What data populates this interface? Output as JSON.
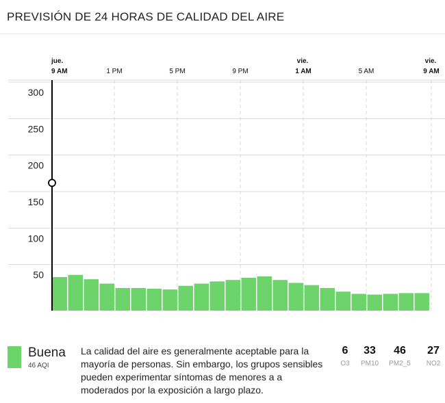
{
  "title": "PREVISIÓN DE 24 HORAS DE CALIDAD DEL AIRE",
  "colors": {
    "good": "#6dd36b",
    "grid": "#d8d8d8",
    "axis": "#000000"
  },
  "chart_data": {
    "type": "bar",
    "title": "PREVISIÓN DE 24 HORAS DE CALIDAD DEL AIRE",
    "ylim": [
      0,
      300
    ],
    "yticks": [
      50,
      100,
      150,
      200,
      250,
      300
    ],
    "grid": true,
    "xticks": [
      {
        "day": "jue.",
        "time": "9 AM",
        "bold": true,
        "index": 0
      },
      {
        "day": "",
        "time": "1 PM",
        "bold": false,
        "index": 4
      },
      {
        "day": "",
        "time": "5 PM",
        "bold": false,
        "index": 8
      },
      {
        "day": "",
        "time": "9 PM",
        "bold": false,
        "index": 12
      },
      {
        "day": "vie.",
        "time": "1 AM",
        "bold": true,
        "index": 16
      },
      {
        "day": "",
        "time": "5 AM",
        "bold": false,
        "index": 20
      },
      {
        "day": "vie.",
        "time": "9 AM",
        "bold": true,
        "index": 24
      }
    ],
    "values": [
      46,
      49,
      43,
      37,
      31,
      31,
      30,
      29,
      34,
      37,
      40,
      42,
      45,
      47,
      42,
      38,
      35,
      31,
      26,
      23,
      22,
      23,
      24,
      24
    ],
    "marker_value": 175
  },
  "aqi": {
    "category": "Buena",
    "value_label": "46 AQI",
    "description": "La calidad del aire es generalmente aceptable para la mayoría de personas. Sin embargo, los grupos sensibles pueden experimentar síntomas de menores a a moderados por la exposición a largo plazo."
  },
  "pollutants": [
    {
      "value": "6",
      "name": "O3"
    },
    {
      "value": "33",
      "name": "PM10"
    },
    {
      "value": "46",
      "name": "PM2_5"
    },
    {
      "value": "27",
      "name": "NO2"
    }
  ]
}
